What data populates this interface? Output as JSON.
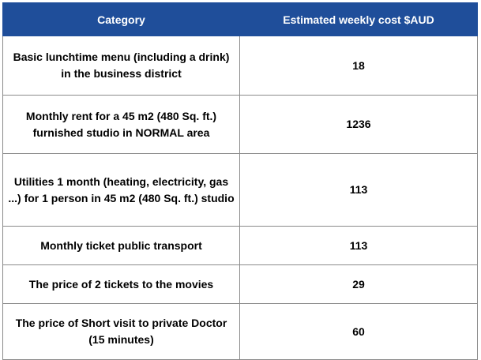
{
  "table": {
    "headers": [
      "Category",
      "Estimated weekly cost $AUD"
    ],
    "rows": [
      {
        "category": "Basic lunchtime menu (including a drink) in the business district",
        "cost": "18"
      },
      {
        "category": "Monthly rent for a 45 m2 (480 Sq. ft.) furnished studio in NORMAL area",
        "cost": "1236"
      },
      {
        "category": "Utilities 1 month (heating, electricity, gas ...) for 1 person in 45 m2 (480 Sq. ft.) studio",
        "cost": "113"
      },
      {
        "category": "Monthly ticket public transport",
        "cost": "113"
      },
      {
        "category": "The price of 2 tickets to the movies",
        "cost": "29"
      },
      {
        "category": "The price of Short visit to private Doctor (15 minutes)",
        "cost": "60"
      }
    ]
  },
  "colors": {
    "header_background": "#1f4e9a",
    "header_text": "#ffffff",
    "border": "#8a8a8a"
  }
}
